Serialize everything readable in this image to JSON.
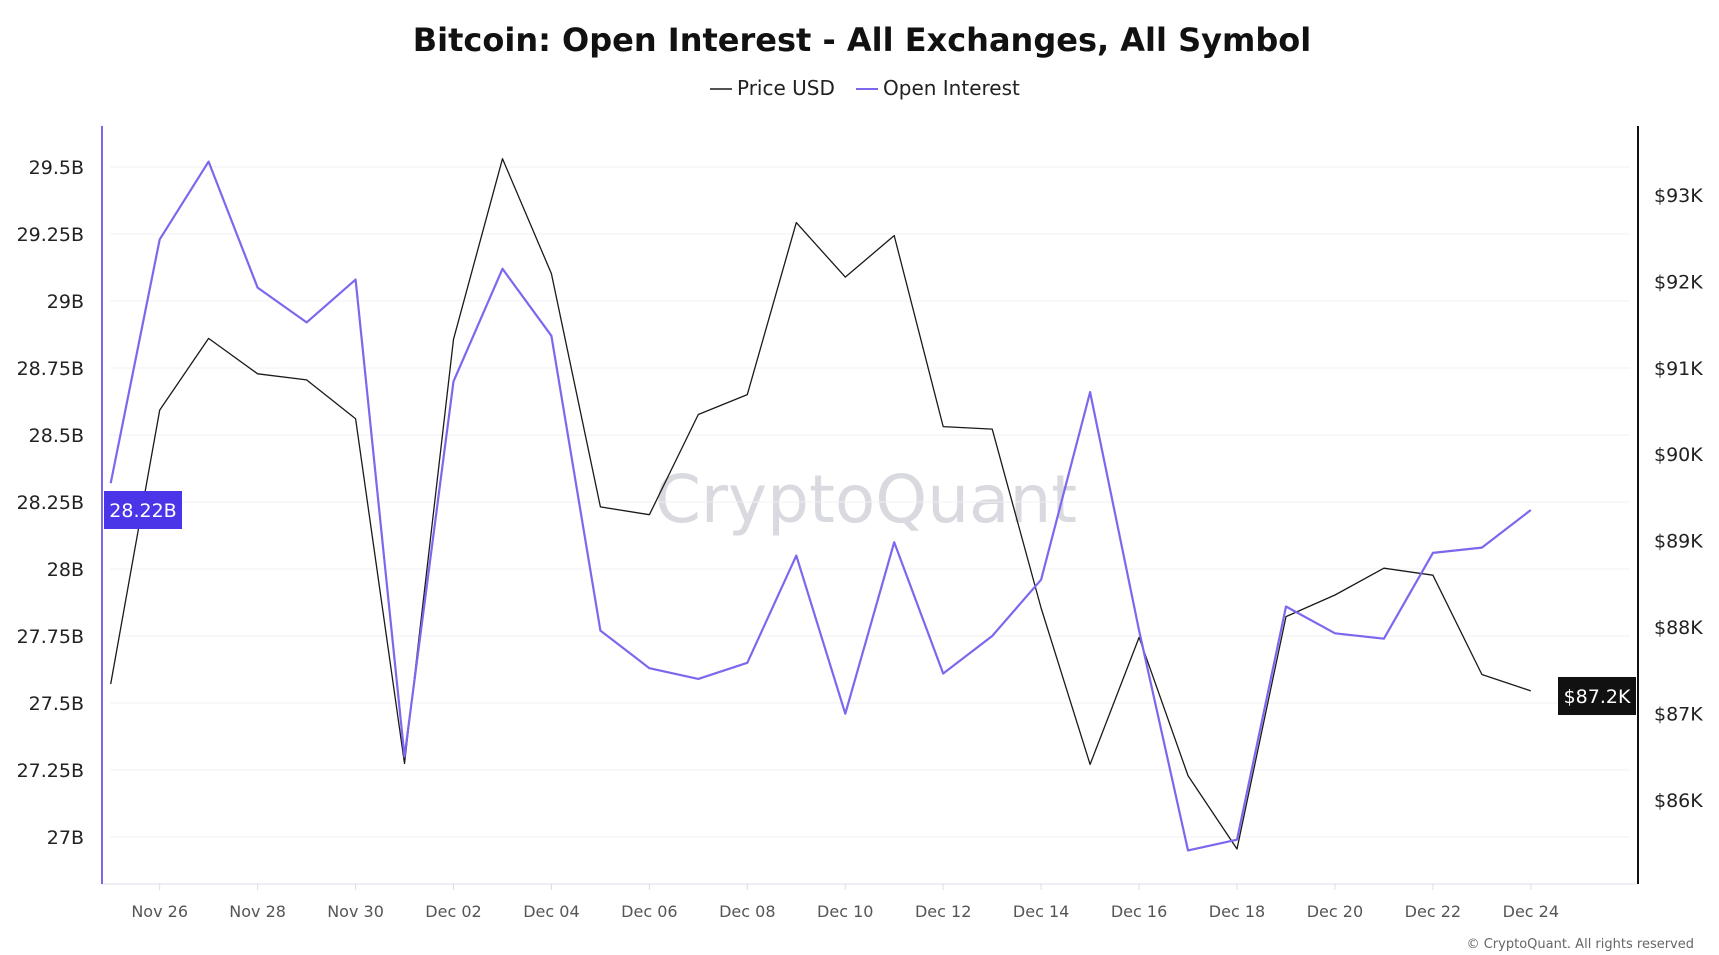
{
  "chart_data": {
    "type": "line",
    "title": "Bitcoin: Open Interest - All Exchanges, All Symbol",
    "watermark": "CryptoQuant",
    "footer": "© CryptoQuant. All rights reserved",
    "legend_placement": "top-center",
    "grid": true,
    "x": [
      "Nov 25",
      "Nov 26",
      "Nov 27",
      "Nov 28",
      "Nov 29",
      "Nov 30",
      "Dec 01",
      "Dec 02",
      "Dec 03",
      "Dec 04",
      "Dec 05",
      "Dec 06",
      "Dec 07",
      "Dec 08",
      "Dec 09",
      "Dec 10",
      "Dec 11",
      "Dec 12",
      "Dec 13",
      "Dec 14",
      "Dec 15",
      "Dec 16",
      "Dec 17",
      "Dec 18",
      "Dec 19",
      "Dec 20",
      "Dec 21",
      "Dec 22",
      "Dec 23",
      "Dec 24"
    ],
    "x_tick_labels": [
      "Nov 26",
      "Nov 28",
      "Nov 30",
      "Dec 02",
      "Dec 04",
      "Dec 06",
      "Dec 08",
      "Dec 10",
      "Dec 12",
      "Dec 14",
      "Dec 16",
      "Dec 18",
      "Dec 20",
      "Dec 22",
      "Dec 24"
    ],
    "left_axis": {
      "unit": "B",
      "ylim": [
        26.82,
        29.65
      ],
      "ticks": [
        "27B",
        "27.25B",
        "27.5B",
        "27.75B",
        "28B",
        "28.25B",
        "28.5B",
        "28.75B",
        "29B",
        "29.25B",
        "29.5B"
      ],
      "tick_values": [
        27,
        27.25,
        27.5,
        27.75,
        28,
        28.25,
        28.5,
        28.75,
        29,
        29.25,
        29.5
      ],
      "current_label": "28.22B",
      "color": "#7b68ee"
    },
    "right_axis": {
      "unit": "K USD",
      "ylim": [
        85.0,
        93.8
      ],
      "ticks": [
        "$86K",
        "$87K",
        "$88K",
        "$89K",
        "$90K",
        "$91K",
        "$92K",
        "$93K"
      ],
      "tick_values": [
        86,
        87,
        88,
        89,
        90,
        91,
        92,
        93
      ],
      "current_label": "$87.2K",
      "color": "#111111"
    },
    "series": [
      {
        "name": "Price USD",
        "axis": "right",
        "color": "#1a1a1a",
        "values": [
          87.34,
          90.51,
          91.34,
          90.93,
          90.86,
          90.41,
          86.42,
          91.33,
          93.42,
          92.09,
          89.39,
          89.3,
          90.46,
          90.69,
          92.68,
          92.05,
          92.53,
          90.32,
          90.29,
          88.22,
          86.41,
          87.88,
          86.28,
          85.43,
          88.12,
          88.37,
          88.68,
          88.6,
          87.45,
          87.26
        ]
      },
      {
        "name": "Open Interest",
        "axis": "left",
        "color": "#7b68ee",
        "values": [
          28.32,
          29.23,
          29.52,
          29.05,
          28.92,
          29.08,
          27.3,
          28.7,
          29.12,
          28.87,
          27.77,
          27.63,
          27.59,
          27.65,
          28.05,
          27.46,
          28.1,
          27.61,
          27.75,
          27.96,
          28.66,
          27.77,
          26.95,
          26.99,
          27.86,
          27.76,
          27.74,
          28.06,
          28.08,
          28.22
        ]
      }
    ],
    "badge_left_color": "#4a35e8",
    "badge_right_color": "#111111"
  }
}
